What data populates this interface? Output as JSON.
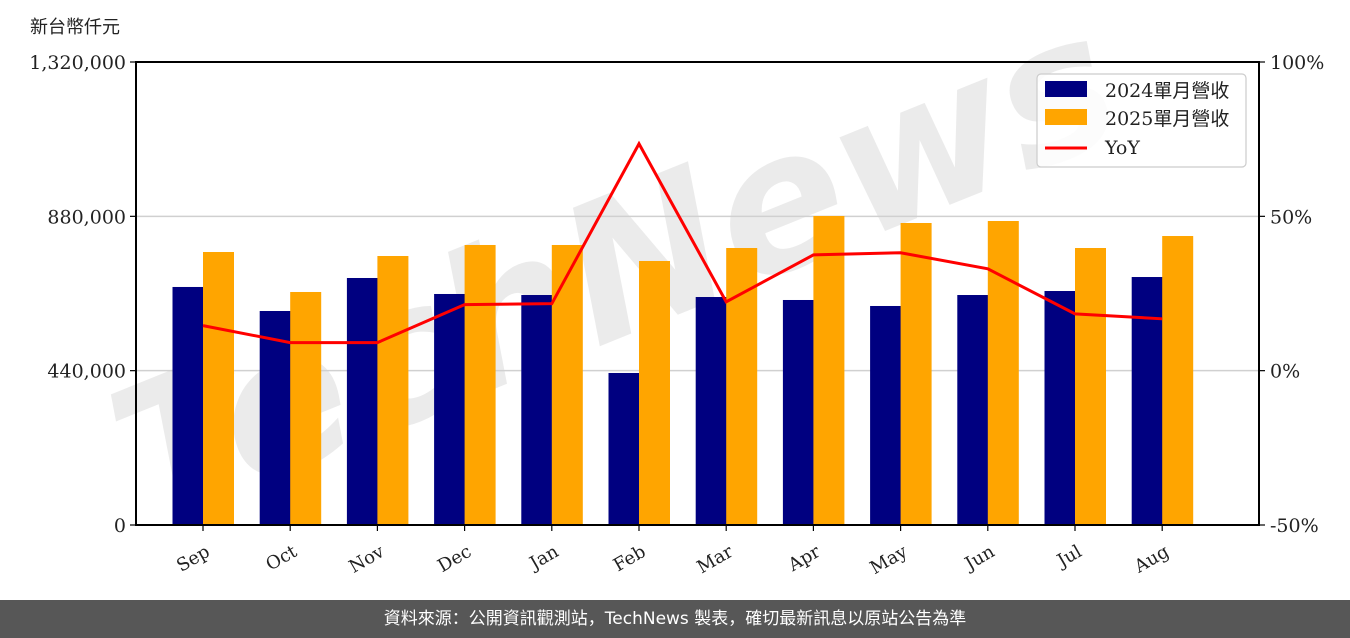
{
  "unit_label": "新台幣仟元",
  "footer": "資料來源：公開資訊觀測站，TechNews 製表，確切最新訊息以原站公告為準",
  "watermark": "TechNews",
  "colors": {
    "series_2024": "#000080",
    "series_2025": "#FFA500",
    "yoy": "#FF0000"
  },
  "chart_data": {
    "type": "bar",
    "title": "",
    "xlabel": "",
    "ylabel": "新台幣仟元",
    "ylabel_right": "",
    "categories": [
      "Sep",
      "Oct",
      "Nov",
      "Dec",
      "Jan",
      "Feb",
      "Mar",
      "Apr",
      "May",
      "Jun",
      "Jul",
      "Aug"
    ],
    "series": [
      {
        "name": "2024單月營收",
        "type": "bar",
        "axis": "left",
        "values": [
          678600,
          610100,
          704200,
          658600,
          655700,
          433400,
          650000,
          641500,
          624400,
          655700,
          667100,
          707000
        ]
      },
      {
        "name": "2025單月營收",
        "type": "bar",
        "axis": "left",
        "values": [
          778300,
          664300,
          766900,
          798300,
          798300,
          752700,
          789700,
          881000,
          861000,
          866700,
          789700,
          823900
        ]
      },
      {
        "name": "YoY",
        "type": "line",
        "axis": "right",
        "unit": "%",
        "values": [
          14.6,
          9.1,
          9.1,
          21.4,
          21.7,
          73.5,
          22.3,
          37.5,
          38.2,
          33.0,
          18.4,
          16.8
        ]
      }
    ],
    "ylim": [
      0,
      1320000
    ],
    "yticks": [
      "0",
      "440,000",
      "880,000",
      "1,320,000"
    ],
    "ylim_right": [
      -50,
      100
    ],
    "yticks_right": [
      "-50%",
      "0%",
      "50%",
      "100%"
    ],
    "grid": "horizontal",
    "legend_position": "upper right",
    "legend": [
      "2024單月營收",
      "2025單月營收",
      "YoY"
    ]
  }
}
